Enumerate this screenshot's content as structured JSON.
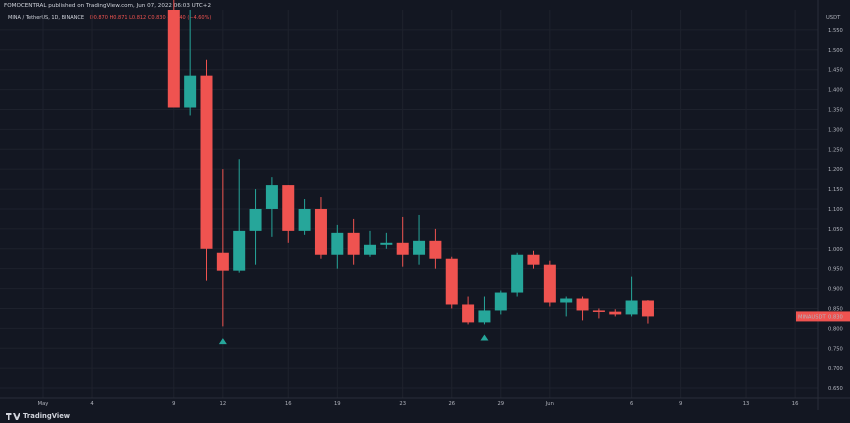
{
  "header": {
    "publisher_line": "FOMOCENTRAL published on TradingView.com, Jun 07, 2022 06:03 UTC+2",
    "symbol_line": "MINA / TetherUS, 1D, BINANCE",
    "ohlc": "O0.870 H0.871 L0.812 C0.830 −0.040 (−4.60%)"
  },
  "footer": {
    "brand": "TradingView"
  },
  "colors": {
    "up": "#26a69a",
    "down": "#ef5350",
    "background": "#131722",
    "grid": "#1e222d",
    "price_tag": "#ef5350"
  },
  "chart_data": {
    "type": "candlestick",
    "currency_label": "USDT",
    "ylim": [
      0.625,
      1.6
    ],
    "y_ticks": [
      0.65,
      0.7,
      0.75,
      0.8,
      0.85,
      0.9,
      0.95,
      1.0,
      1.05,
      1.1,
      1.15,
      1.2,
      1.25,
      1.3,
      1.35,
      1.4,
      1.45,
      1.5,
      1.55
    ],
    "x_ticks": [
      {
        "label": "May",
        "day": 0
      },
      {
        "label": "4",
        "day": 3
      },
      {
        "label": "9",
        "day": 8
      },
      {
        "label": "12",
        "day": 11
      },
      {
        "label": "16",
        "day": 15
      },
      {
        "label": "19",
        "day": 18
      },
      {
        "label": "23",
        "day": 22
      },
      {
        "label": "26",
        "day": 25
      },
      {
        "label": "29",
        "day": 28
      },
      {
        "label": "Jun",
        "day": 31
      },
      {
        "label": "6",
        "day": 36
      },
      {
        "label": "9",
        "day": 39
      },
      {
        "label": "13",
        "day": 43
      },
      {
        "label": "16",
        "day": 46
      }
    ],
    "candles": [
      {
        "day": 8,
        "o": 1.6,
        "h": 1.64,
        "l": 1.355,
        "c": 1.355
      },
      {
        "day": 9,
        "o": 1.355,
        "h": 1.6,
        "l": 1.335,
        "c": 1.435
      },
      {
        "day": 10,
        "o": 1.435,
        "h": 1.475,
        "l": 0.92,
        "c": 1.0
      },
      {
        "day": 11,
        "o": 0.99,
        "h": 1.2,
        "l": 0.805,
        "c": 0.945
      },
      {
        "day": 12,
        "o": 0.945,
        "h": 1.225,
        "l": 0.94,
        "c": 1.045
      },
      {
        "day": 13,
        "o": 1.045,
        "h": 1.15,
        "l": 0.96,
        "c": 1.1
      },
      {
        "day": 14,
        "o": 1.1,
        "h": 1.18,
        "l": 1.03,
        "c": 1.16
      },
      {
        "day": 15,
        "o": 1.16,
        "h": 1.16,
        "l": 1.015,
        "c": 1.045
      },
      {
        "day": 16,
        "o": 1.045,
        "h": 1.125,
        "l": 1.035,
        "c": 1.1
      },
      {
        "day": 17,
        "o": 1.1,
        "h": 1.13,
        "l": 0.975,
        "c": 0.985
      },
      {
        "day": 18,
        "o": 0.985,
        "h": 1.06,
        "l": 0.95,
        "c": 1.04
      },
      {
        "day": 19,
        "o": 1.04,
        "h": 1.075,
        "l": 0.96,
        "c": 0.985
      },
      {
        "day": 20,
        "o": 0.985,
        "h": 1.045,
        "l": 0.98,
        "c": 1.01
      },
      {
        "day": 21,
        "o": 1.01,
        "h": 1.04,
        "l": 1.0,
        "c": 1.015
      },
      {
        "day": 22,
        "o": 1.015,
        "h": 1.08,
        "l": 0.955,
        "c": 0.985
      },
      {
        "day": 23,
        "o": 0.985,
        "h": 1.085,
        "l": 0.96,
        "c": 1.02
      },
      {
        "day": 24,
        "o": 1.02,
        "h": 1.05,
        "l": 0.95,
        "c": 0.975
      },
      {
        "day": 25,
        "o": 0.975,
        "h": 0.98,
        "l": 0.85,
        "c": 0.86
      },
      {
        "day": 26,
        "o": 0.86,
        "h": 0.88,
        "l": 0.81,
        "c": 0.815
      },
      {
        "day": 27,
        "o": 0.815,
        "h": 0.88,
        "l": 0.81,
        "c": 0.845
      },
      {
        "day": 28,
        "o": 0.845,
        "h": 0.895,
        "l": 0.835,
        "c": 0.89
      },
      {
        "day": 29,
        "o": 0.89,
        "h": 0.99,
        "l": 0.88,
        "c": 0.985
      },
      {
        "day": 30,
        "o": 0.985,
        "h": 0.995,
        "l": 0.95,
        "c": 0.96
      },
      {
        "day": 31,
        "o": 0.96,
        "h": 0.97,
        "l": 0.855,
        "c": 0.865
      },
      {
        "day": 32,
        "o": 0.865,
        "h": 0.88,
        "l": 0.83,
        "c": 0.875
      },
      {
        "day": 33,
        "o": 0.875,
        "h": 0.88,
        "l": 0.82,
        "c": 0.845
      },
      {
        "day": 34,
        "o": 0.845,
        "h": 0.85,
        "l": 0.825,
        "c": 0.842
      },
      {
        "day": 35,
        "o": 0.842,
        "h": 0.848,
        "l": 0.83,
        "c": 0.835
      },
      {
        "day": 36,
        "o": 0.835,
        "h": 0.93,
        "l": 0.83,
        "c": 0.87
      },
      {
        "day": 37,
        "o": 0.87,
        "h": 0.871,
        "l": 0.812,
        "c": 0.83
      }
    ],
    "markers": [
      {
        "day": 11,
        "price": 0.768,
        "shape": "triangle-up",
        "color": "#26a69a"
      },
      {
        "day": 27,
        "price": 0.777,
        "shape": "triangle-up",
        "color": "#26a69a"
      }
    ],
    "last_price": {
      "label": "MINAUSDT",
      "value": "0.830",
      "price": 0.83
    }
  }
}
